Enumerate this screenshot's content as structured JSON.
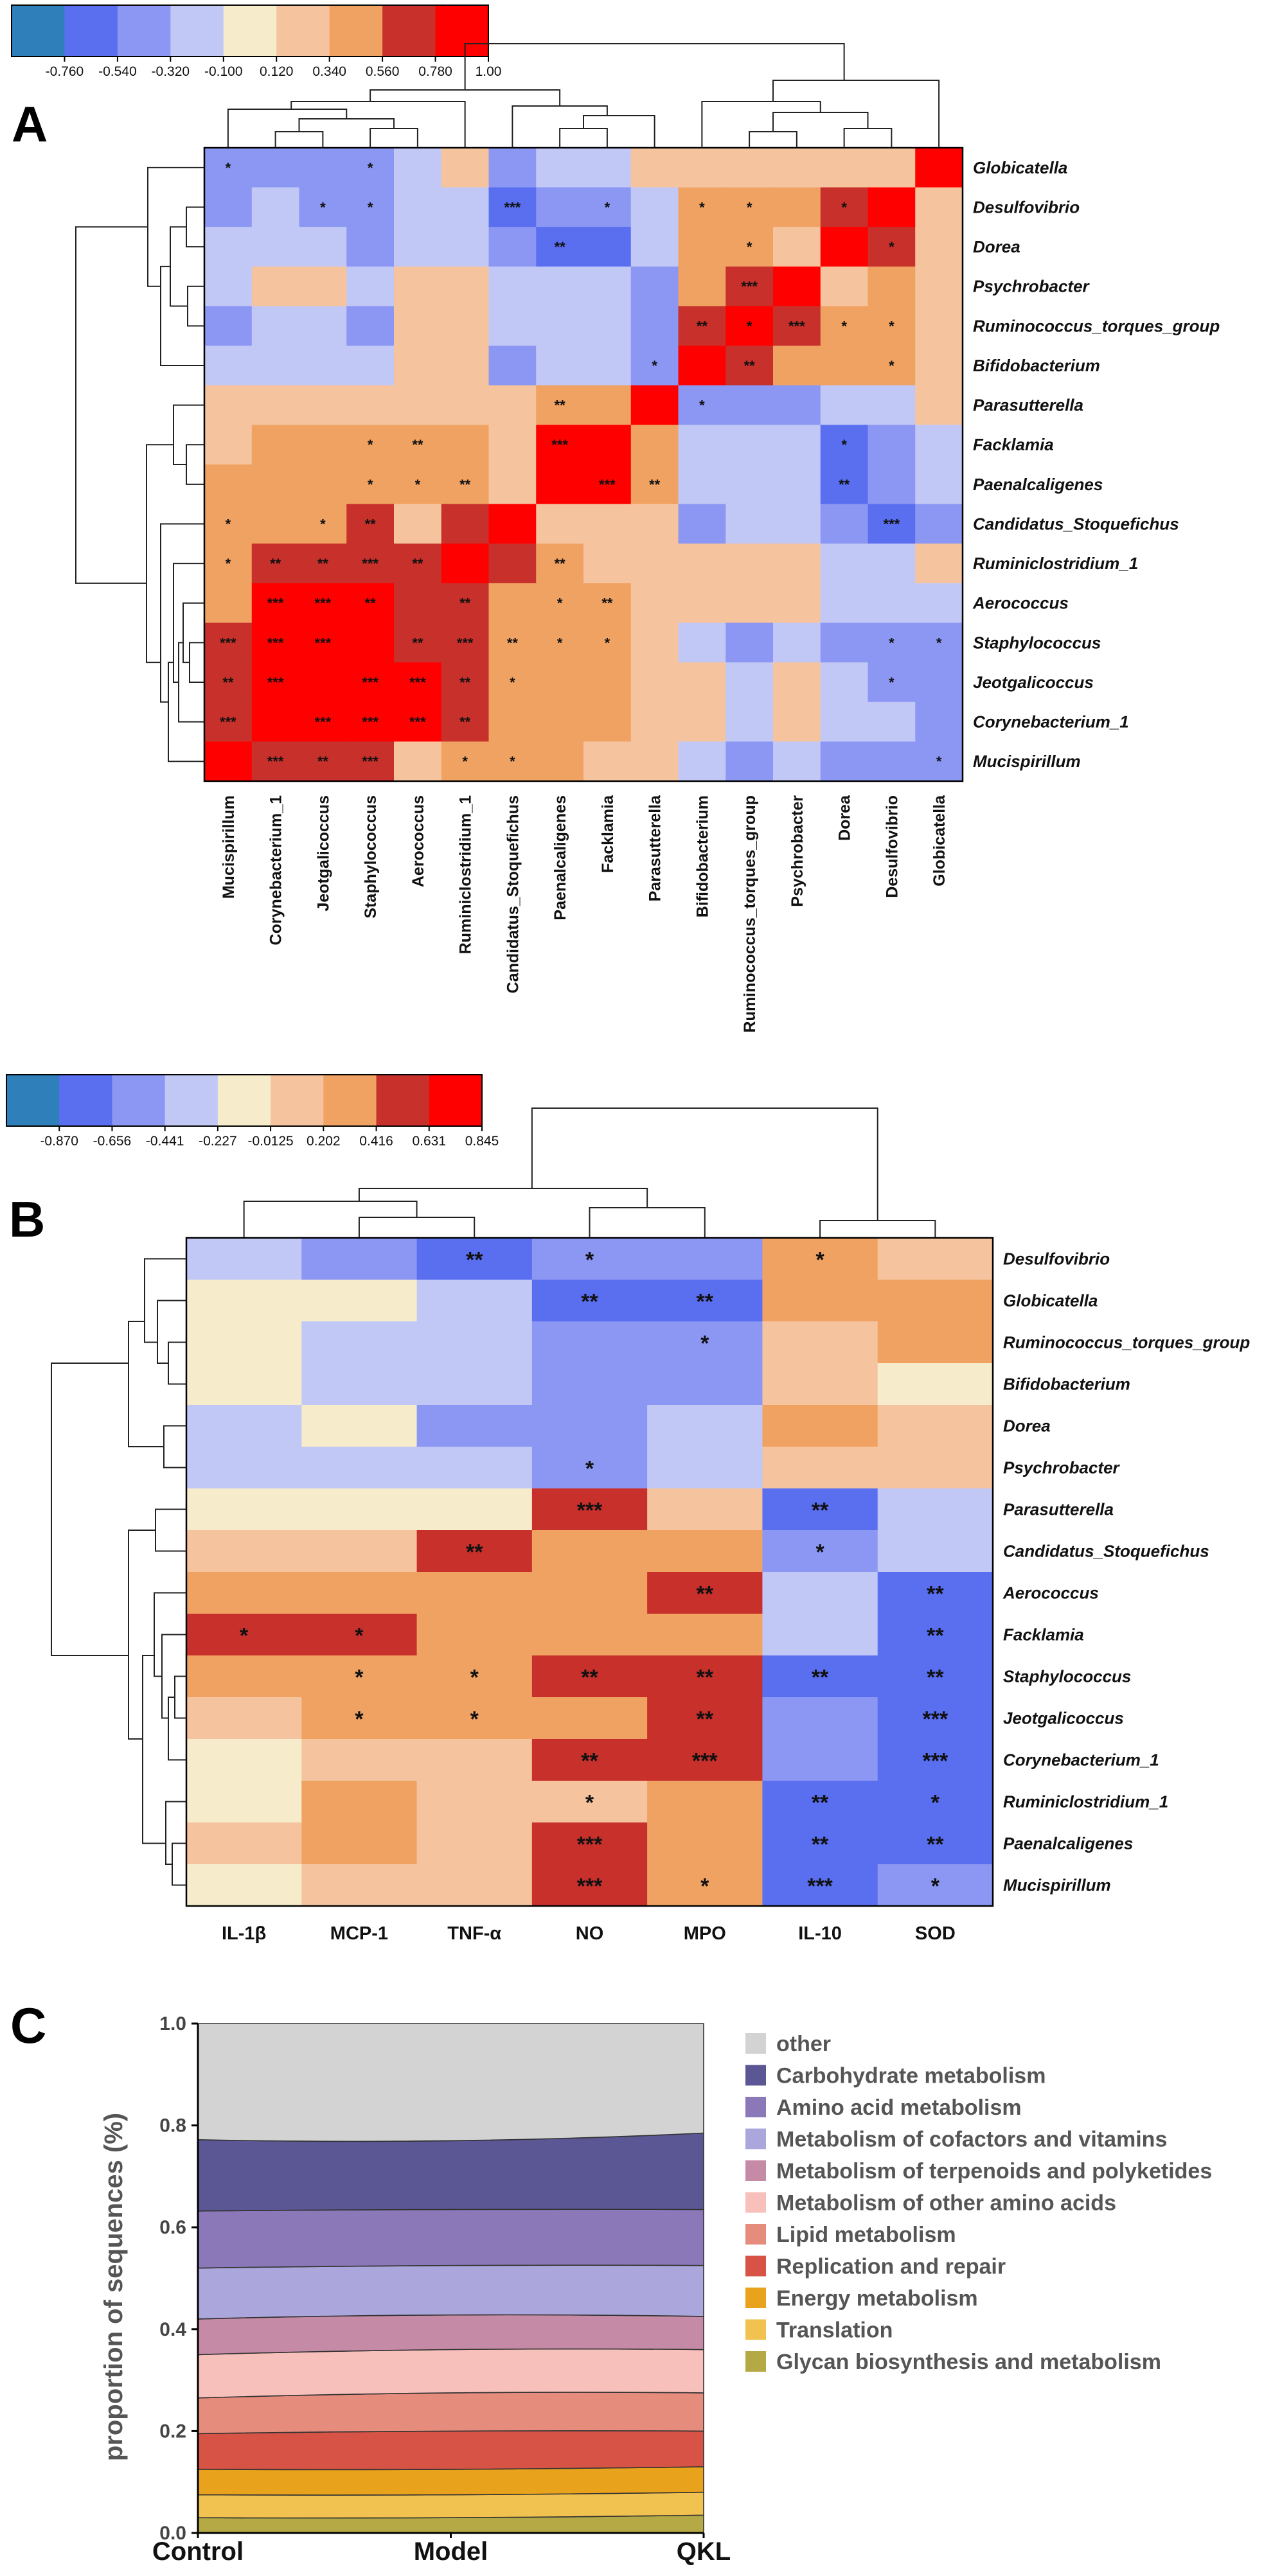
{
  "panels": {
    "a": "A",
    "b": "B",
    "c": "C"
  },
  "colors": {
    "scale": [
      "#2f7fbb",
      "#5a6ff0",
      "#8b97f2",
      "#c2c8f6",
      "#f6eccb",
      "#f5c49e",
      "#f0a263",
      "#c7302b",
      "#ff0000"
    ],
    "area": [
      "#b4a945",
      "#f1c24f",
      "#e9a21c",
      "#d65346",
      "#e68c7d",
      "#f7c0bb",
      "#c58aa6",
      "#aba7dc",
      "#8a78b8",
      "#5b5694",
      "#d3d3d3"
    ]
  },
  "chart_data": [
    {
      "type": "heatmap",
      "panel": "A",
      "colorbar": {
        "ticks": [
          "-0.760",
          "-0.540",
          "-0.320",
          "-0.100",
          "0.120",
          "0.340",
          "0.560",
          "0.780",
          "1.00"
        ]
      },
      "rows": [
        "Globicatella",
        "Desulfovibrio",
        "Dorea",
        "Psychrobacter",
        "Ruminococcus_torques_group",
        "Bifidobacterium",
        "Parasutterella",
        "Facklamia",
        "Paenalcaligenes",
        "Candidatus_Stoquefichus",
        "Ruminiclostridium_1",
        "Aerococcus",
        "Staphylococcus",
        "Jeotgalicoccus",
        "Corynebacterium_1",
        "Mucispirillum"
      ],
      "columns": [
        "Mucispirillum",
        "Corynebacterium_1",
        "Jeotgalicoccus",
        "Staphylococcus",
        "Aerococcus",
        "Ruminiclostridium_1",
        "Candidatus_Stoquefichus",
        "Paenalcaligenes",
        "Facklamia",
        "Parasutterella",
        "Bifidobacterium",
        "Ruminococcus_torques_group",
        "Psychrobacter",
        "Dorea",
        "Desulfovibrio",
        "Globicatella"
      ],
      "values": [
        [
          -0.43,
          -0.43,
          -0.43,
          -0.43,
          -0.21,
          0.13,
          -0.43,
          -0.21,
          -0.21,
          0.13,
          0.13,
          0.13,
          0.13,
          0.13,
          0.13,
          1.0
        ],
        [
          -0.43,
          -0.21,
          -0.43,
          -0.43,
          -0.21,
          -0.21,
          -0.65,
          -0.43,
          -0.43,
          -0.21,
          0.35,
          0.35,
          0.35,
          0.57,
          0.89,
          0.13
        ],
        [
          -0.21,
          -0.21,
          -0.21,
          -0.43,
          -0.21,
          -0.21,
          -0.43,
          -0.65,
          -0.65,
          -0.21,
          0.35,
          0.35,
          0.13,
          0.89,
          0.57,
          0.13
        ],
        [
          -0.21,
          0.13,
          0.13,
          -0.21,
          0.13,
          0.13,
          -0.21,
          -0.21,
          -0.21,
          -0.43,
          0.35,
          0.57,
          0.89,
          0.13,
          0.35,
          0.13
        ],
        [
          -0.43,
          -0.21,
          -0.21,
          -0.43,
          0.13,
          0.13,
          -0.21,
          -0.21,
          -0.21,
          -0.43,
          0.57,
          0.89,
          0.57,
          0.35,
          0.35,
          0.13
        ],
        [
          -0.21,
          -0.21,
          -0.21,
          -0.21,
          0.13,
          0.13,
          -0.43,
          -0.21,
          -0.21,
          -0.43,
          0.89,
          0.57,
          0.35,
          0.35,
          0.35,
          0.13
        ],
        [
          0.13,
          0.13,
          0.13,
          0.13,
          0.13,
          0.13,
          0.13,
          0.35,
          0.35,
          0.89,
          -0.43,
          -0.43,
          -0.43,
          -0.21,
          -0.21,
          0.13
        ],
        [
          0.13,
          0.35,
          0.35,
          0.35,
          0.35,
          0.35,
          0.13,
          0.89,
          0.89,
          0.35,
          -0.21,
          -0.21,
          -0.21,
          -0.65,
          -0.43,
          -0.21
        ],
        [
          0.35,
          0.35,
          0.35,
          0.35,
          0.35,
          0.35,
          0.13,
          0.89,
          0.89,
          0.35,
          -0.21,
          -0.21,
          -0.21,
          -0.65,
          -0.43,
          -0.21
        ],
        [
          0.35,
          0.35,
          0.35,
          0.57,
          0.13,
          0.57,
          0.89,
          0.13,
          0.13,
          0.13,
          -0.43,
          -0.21,
          -0.21,
          -0.43,
          -0.65,
          -0.43
        ],
        [
          0.35,
          0.57,
          0.57,
          0.57,
          0.57,
          0.89,
          0.57,
          0.35,
          0.13,
          0.13,
          0.13,
          0.13,
          0.13,
          -0.21,
          -0.21,
          0.13
        ],
        [
          0.35,
          0.89,
          0.89,
          0.89,
          0.57,
          0.57,
          0.35,
          0.35,
          0.35,
          0.13,
          0.13,
          0.13,
          0.13,
          -0.21,
          -0.21,
          -0.21
        ],
        [
          0.57,
          0.89,
          0.89,
          0.89,
          0.57,
          0.57,
          0.35,
          0.35,
          0.35,
          0.13,
          -0.21,
          -0.43,
          -0.21,
          -0.43,
          -0.43,
          -0.43
        ],
        [
          0.57,
          0.89,
          0.89,
          0.89,
          0.89,
          0.57,
          0.35,
          0.35,
          0.35,
          0.13,
          0.13,
          -0.21,
          0.13,
          -0.21,
          -0.43,
          -0.43
        ],
        [
          0.57,
          0.89,
          0.89,
          0.89,
          0.89,
          0.57,
          0.35,
          0.35,
          0.35,
          0.13,
          0.13,
          -0.21,
          0.13,
          -0.21,
          -0.21,
          -0.43
        ],
        [
          0.89,
          0.57,
          0.57,
          0.57,
          0.13,
          0.35,
          0.35,
          0.35,
          0.13,
          0.13,
          -0.21,
          -0.43,
          -0.21,
          -0.43,
          -0.43,
          -0.43
        ]
      ],
      "stars": [
        [
          "*",
          "",
          "",
          "*",
          "",
          "",
          "",
          "",
          "",
          "",
          "",
          "",
          "",
          "",
          "",
          ""
        ],
        [
          "",
          "",
          "*",
          "*",
          "",
          "",
          "***",
          "",
          "*",
          "",
          "*",
          "*",
          "",
          "*",
          "",
          ""
        ],
        [
          "",
          "",
          "",
          "",
          "",
          "",
          "",
          "**",
          "",
          "",
          "",
          "*",
          "",
          "",
          "*",
          ""
        ],
        [
          "",
          "",
          "",
          "",
          "",
          "",
          "",
          "",
          "",
          "",
          "",
          "***",
          "",
          "",
          "",
          ""
        ],
        [
          "",
          "",
          "",
          "",
          "",
          "",
          "",
          "",
          "",
          "",
          "**",
          "*",
          "***",
          "*",
          "*",
          ""
        ],
        [
          "",
          "",
          "",
          "",
          "",
          "",
          "",
          "",
          "",
          "*",
          "",
          "**",
          "",
          "",
          "*",
          ""
        ],
        [
          "",
          "",
          "",
          "",
          "",
          "",
          "",
          "**",
          "",
          "",
          "*",
          "",
          "",
          "",
          "",
          ""
        ],
        [
          "",
          "",
          "",
          "*",
          "**",
          "",
          "",
          "***",
          "",
          "",
          "",
          "",
          "",
          "*",
          "",
          ""
        ],
        [
          "",
          "",
          "",
          "*",
          "*",
          "**",
          "",
          "",
          "***",
          "**",
          "",
          "",
          "",
          "**",
          "",
          ""
        ],
        [
          "*",
          "",
          "*",
          "**",
          "",
          "",
          "",
          "",
          "",
          "",
          "",
          "",
          "",
          "",
          "***",
          ""
        ],
        [
          "*",
          "**",
          "**",
          "***",
          "**",
          "",
          "",
          "**",
          "",
          "",
          "",
          "",
          "",
          "",
          "",
          ""
        ],
        [
          "",
          "***",
          "***",
          "**",
          "",
          "**",
          "",
          "*",
          "**",
          "",
          "",
          "",
          "",
          "",
          "",
          ""
        ],
        [
          "***",
          "***",
          "***",
          "",
          "**",
          "***",
          "**",
          "*",
          "*",
          "",
          "",
          "",
          "",
          "",
          "*",
          "*"
        ],
        [
          "**",
          "***",
          "",
          "***",
          "***",
          "**",
          "*",
          "",
          "",
          "",
          "",
          "",
          "",
          "",
          "*",
          ""
        ],
        [
          "***",
          "",
          "***",
          "***",
          "***",
          "**",
          "",
          "",
          "",
          "",
          "",
          "",
          "",
          "",
          "",
          ""
        ],
        [
          "",
          "***",
          "**",
          "***",
          "",
          "*",
          "*",
          "",
          "",
          "",
          "",
          "",
          "",
          "",
          "",
          "*"
        ]
      ]
    },
    {
      "type": "heatmap",
      "panel": "B",
      "colorbar": {
        "ticks": [
          "-0.870",
          "-0.656",
          "-0.441",
          "-0.227",
          "-0.0125",
          "0.202",
          "0.416",
          "0.631",
          "0.845"
        ]
      },
      "rows": [
        "Desulfovibrio",
        "Globicatella",
        "Ruminococcus_torques_group",
        "Bifidobacterium",
        "Dorea",
        "Psychrobacter",
        "Parasutterella",
        "Candidatus_Stoquefichus",
        "Aerococcus",
        "Facklamia",
        "Staphylococcus",
        "Jeotgalicoccus",
        "Corynebacterium_1",
        "Ruminiclostridium_1",
        "Paenalcaligenes",
        "Mucispirillum"
      ],
      "columns": [
        "IL-1β",
        "MCP-1",
        "TNF-α",
        "NO",
        "MPO",
        "IL-10",
        "SOD"
      ],
      "values": [
        [
          -0.3,
          -0.5,
          -0.7,
          -0.5,
          -0.5,
          0.5,
          0.3
        ],
        [
          0.1,
          0.1,
          -0.3,
          -0.7,
          -0.7,
          0.5,
          0.5
        ],
        [
          0.1,
          -0.3,
          -0.3,
          -0.5,
          -0.5,
          0.3,
          0.5
        ],
        [
          0.1,
          -0.3,
          -0.3,
          -0.5,
          -0.5,
          0.3,
          0.1
        ],
        [
          -0.3,
          0.1,
          -0.5,
          -0.5,
          -0.3,
          0.5,
          0.3
        ],
        [
          -0.3,
          -0.3,
          -0.3,
          -0.5,
          -0.3,
          0.3,
          0.3
        ],
        [
          0.1,
          0.1,
          0.1,
          0.75,
          0.3,
          -0.7,
          -0.3
        ],
        [
          0.3,
          0.3,
          0.75,
          0.5,
          0.5,
          -0.5,
          -0.3
        ],
        [
          0.5,
          0.5,
          0.5,
          0.5,
          0.75,
          -0.3,
          -0.7
        ],
        [
          0.75,
          0.75,
          0.5,
          0.5,
          0.5,
          -0.3,
          -0.7
        ],
        [
          0.5,
          0.5,
          0.5,
          0.75,
          0.75,
          -0.7,
          -0.7
        ],
        [
          0.3,
          0.5,
          0.5,
          0.5,
          0.75,
          -0.5,
          -0.7
        ],
        [
          0.1,
          0.3,
          0.3,
          0.75,
          0.75,
          -0.5,
          -0.7
        ],
        [
          0.1,
          0.5,
          0.3,
          0.3,
          0.5,
          -0.7,
          -0.7
        ],
        [
          0.3,
          0.5,
          0.3,
          0.75,
          0.5,
          -0.7,
          -0.7
        ],
        [
          0.1,
          0.3,
          0.3,
          0.75,
          0.5,
          -0.7,
          -0.5
        ]
      ],
      "stars": [
        [
          "",
          "",
          "**",
          "*",
          "",
          "*",
          ""
        ],
        [
          "",
          "",
          "",
          "**",
          "**",
          "",
          ""
        ],
        [
          "",
          "",
          "",
          "",
          "*",
          "",
          ""
        ],
        [
          "",
          "",
          "",
          "",
          "",
          "",
          ""
        ],
        [
          "",
          "",
          "",
          "",
          "",
          "",
          ""
        ],
        [
          "",
          "",
          "",
          "*",
          "",
          "",
          ""
        ],
        [
          "",
          "",
          "",
          "***",
          "",
          "**",
          ""
        ],
        [
          "",
          "",
          "**",
          "",
          "",
          "*",
          ""
        ],
        [
          "",
          "",
          "",
          "",
          "**",
          "",
          "**"
        ],
        [
          "*",
          "*",
          "",
          "",
          "",
          "",
          "**"
        ],
        [
          "",
          "*",
          "*",
          "**",
          "**",
          "**",
          "**"
        ],
        [
          "",
          "*",
          "*",
          "",
          "**",
          "",
          "***"
        ],
        [
          "",
          "",
          "",
          "**",
          "***",
          "",
          "***"
        ],
        [
          "",
          "",
          "",
          "*",
          "",
          "**",
          "*"
        ],
        [
          "",
          "",
          "",
          "***",
          "",
          "**",
          "**"
        ],
        [
          "",
          "",
          "",
          "***",
          "*",
          "***",
          "*"
        ]
      ]
    },
    {
      "type": "area",
      "panel": "C",
      "stacked": true,
      "categories": [
        "Control",
        "Model",
        "QKL"
      ],
      "ylabel": "proportion of sequences (%)",
      "ylim": [
        0,
        1.0
      ],
      "yticks": [
        "0.0",
        "0.2",
        "0.4",
        "0.6",
        "0.8",
        "1.0"
      ],
      "series": [
        {
          "name": "Glycan biosynthesis and metabolism",
          "values": [
            0.03,
            0.03,
            0.035
          ]
        },
        {
          "name": "Translation",
          "values": [
            0.045,
            0.045,
            0.045
          ]
        },
        {
          "name": "Energy metabolism",
          "values": [
            0.05,
            0.05,
            0.05
          ]
        },
        {
          "name": "Replication and repair",
          "values": [
            0.07,
            0.075,
            0.07
          ]
        },
        {
          "name": "Lipid metabolism",
          "values": [
            0.07,
            0.075,
            0.075
          ]
        },
        {
          "name": "Metabolism of other amino acids",
          "values": [
            0.085,
            0.085,
            0.085
          ]
        },
        {
          "name": "Metabolism of terpenoids and polyketides",
          "values": [
            0.07,
            0.068,
            0.065
          ]
        },
        {
          "name": "Metabolism of cofactors and vitamins",
          "values": [
            0.1,
            0.097,
            0.1
          ]
        },
        {
          "name": "Amino acid metabolism",
          "values": [
            0.112,
            0.11,
            0.11
          ]
        },
        {
          "name": "Carbohydrate metabolism",
          "values": [
            0.14,
            0.135,
            0.15
          ]
        },
        {
          "name": "other",
          "values": [
            0.228,
            0.23,
            0.215
          ]
        }
      ],
      "legend": [
        "other",
        "Carbohydrate metabolism",
        "Amino acid metabolism",
        "Metabolism of cofactors and vitamins",
        "Metabolism of terpenoids and polyketides",
        "Metabolism of other amino acids",
        "Lipid metabolism",
        "Replication and repair",
        "Energy metabolism",
        "Translation",
        "Glycan biosynthesis and metabolism"
      ],
      "legend_position": "right"
    }
  ]
}
